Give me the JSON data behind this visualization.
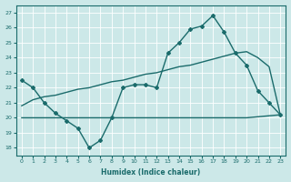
{
  "xlabel": "Humidex (Indice chaleur)",
  "ylabel": "",
  "xlim": [
    -0.5,
    23.5
  ],
  "ylim": [
    17.5,
    27.5
  ],
  "yticks": [
    18,
    19,
    20,
    21,
    22,
    23,
    24,
    25,
    26,
    27
  ],
  "xticks": [
    0,
    1,
    2,
    3,
    4,
    5,
    6,
    7,
    8,
    9,
    10,
    11,
    12,
    13,
    14,
    15,
    16,
    17,
    18,
    19,
    20,
    21,
    22,
    23
  ],
  "bg_color": "#cce8e8",
  "line_color": "#1a6b6b",
  "line1_x": [
    0,
    1,
    2,
    3,
    4,
    5,
    6,
    7,
    8,
    9,
    10,
    11,
    12,
    13,
    14,
    15,
    16,
    17,
    18,
    19,
    20,
    21,
    22,
    23
  ],
  "line1_y": [
    22.5,
    22.0,
    21.0,
    20.3,
    19.8,
    19.3,
    18.0,
    18.5,
    20.0,
    22.0,
    22.2,
    22.2,
    22.0,
    24.3,
    25.0,
    25.9,
    26.1,
    26.8,
    25.7,
    24.3,
    23.5,
    21.8,
    21.0,
    20.2
  ],
  "line2_x": [
    0,
    2,
    20,
    23
  ],
  "line2_y": [
    20.0,
    20.0,
    20.0,
    20.2
  ],
  "line3_x": [
    0,
    1,
    2,
    3,
    4,
    5,
    6,
    7,
    8,
    9,
    10,
    11,
    12,
    13,
    14,
    15,
    16,
    17,
    18,
    19,
    20,
    21,
    22,
    23
  ],
  "line3_y": [
    20.8,
    21.2,
    21.4,
    21.5,
    21.7,
    21.9,
    22.0,
    22.2,
    22.4,
    22.5,
    22.7,
    22.9,
    23.0,
    23.2,
    23.4,
    23.5,
    23.7,
    23.9,
    24.1,
    24.3,
    24.4,
    24.0,
    23.4,
    20.2
  ]
}
